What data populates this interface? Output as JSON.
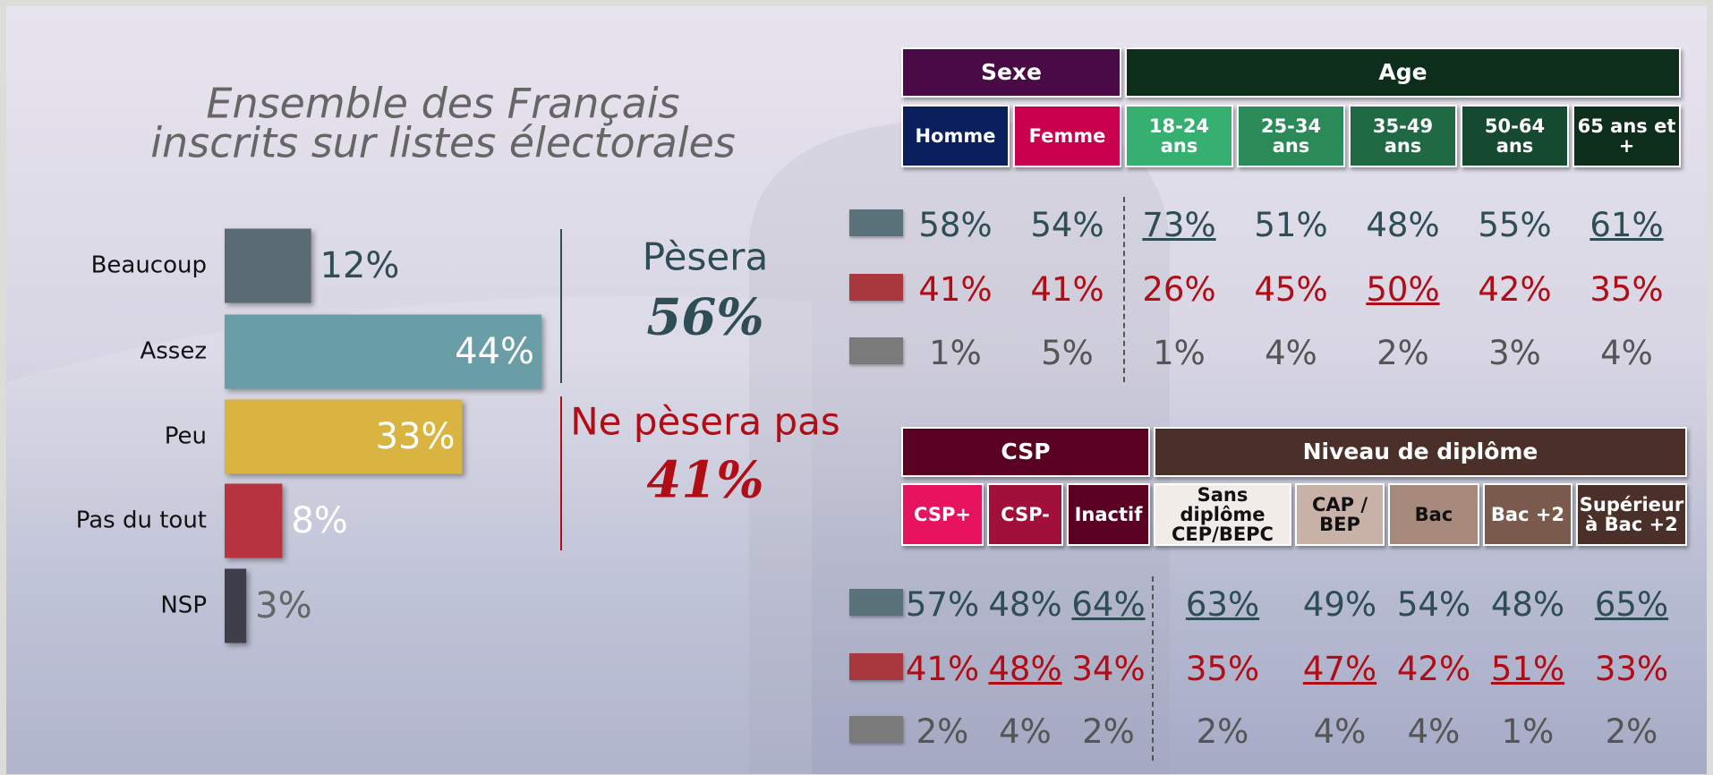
{
  "chart_data": {
    "type": "hbar",
    "title": [
      "Ensemble des Français",
      "inscrits sur listes électorales"
    ],
    "categories": [
      "Beaucoup",
      "Assez",
      "Peu",
      "Pas du tout",
      "NSP"
    ],
    "values": [
      12,
      44,
      33,
      8,
      3
    ],
    "value_labels": [
      "12%",
      "44%",
      "33%",
      "8%",
      "3%"
    ],
    "colors": [
      "#5a6b73",
      "#6a9ea6",
      "#d9b440",
      "#b5343d",
      "#3e3f4a"
    ],
    "label_colors": [
      "#2e4d55",
      "#ffffff",
      "#ffffff",
      "#ffffff",
      "#666666"
    ],
    "annotations": [
      {
        "text": "Pèsera",
        "value": 56,
        "value_label": "56%",
        "color": "#2e4d55"
      },
      {
        "text": "Ne pèsera pas",
        "value": 41,
        "value_label": "41%",
        "color": "#b00d16"
      }
    ]
  },
  "tables": [
    {
      "groups": [
        {
          "name": "Sexe",
          "color": "#4a0a45",
          "columns": [
            {
              "label": "Homme",
              "color": "#0a1f5c",
              "text_color": "#ffffff"
            },
            {
              "label": "Femme",
              "color": "#c8004e",
              "text_color": "#ffffff"
            }
          ]
        },
        {
          "name": "Age",
          "color": "#0e2e1c",
          "columns": [
            {
              "label": "18-24 ans",
              "color": "#35b070",
              "text_color": "#ffffff"
            },
            {
              "label": "25-34 ans",
              "color": "#2a8a58",
              "text_color": "#ffffff"
            },
            {
              "label": "35-49 ans",
              "color": "#1f6a45",
              "text_color": "#ffffff"
            },
            {
              "label": "50-64 ans",
              "color": "#154a30",
              "text_color": "#ffffff"
            },
            {
              "label": "65 ans et +",
              "color": "#0e2e1c",
              "text_color": "#ffffff"
            }
          ]
        }
      ],
      "rows": [
        {
          "color": "#5a737a",
          "text_color": "#2e4d55",
          "values": [
            "58%",
            "54%",
            "73%",
            "51%",
            "48%",
            "55%",
            "61%"
          ],
          "underline": [
            false,
            false,
            true,
            false,
            false,
            false,
            true
          ]
        },
        {
          "color": "#a8373e",
          "text_color": "#b00d16",
          "values": [
            "41%",
            "41%",
            "26%",
            "45%",
            "50%",
            "42%",
            "35%"
          ],
          "underline": [
            false,
            false,
            false,
            false,
            true,
            false,
            false
          ]
        },
        {
          "color": "#7a7a7a",
          "text_color": "#555555",
          "values": [
            "1%",
            "5%",
            "1%",
            "4%",
            "2%",
            "3%",
            "4%"
          ],
          "underline": [
            false,
            false,
            false,
            false,
            false,
            false,
            false
          ]
        }
      ]
    },
    {
      "groups": [
        {
          "name": "CSP",
          "color": "#5a0020",
          "columns": [
            {
              "label": "CSP+",
              "color": "#e8135f",
              "text_color": "#ffffff"
            },
            {
              "label": "CSP-",
              "color": "#a0103a",
              "text_color": "#ffffff"
            },
            {
              "label": "Inactif",
              "color": "#5a0020",
              "text_color": "#ffffff"
            }
          ]
        },
        {
          "name": "Niveau de diplôme",
          "color": "#4a3028",
          "columns": [
            {
              "label": "Sans diplôme CEP/BEPC",
              "color": "#f2ece8",
              "text_color": "#111111"
            },
            {
              "label": "CAP / BEP",
              "color": "#c8b2a8",
              "text_color": "#111111"
            },
            {
              "label": "Bac",
              "color": "#a88a7c",
              "text_color": "#111111"
            },
            {
              "label": "Bac +2",
              "color": "#7a5a4c",
              "text_color": "#ffffff"
            },
            {
              "label": "Supérieur à Bac +2",
              "color": "#4a3028",
              "text_color": "#ffffff"
            }
          ]
        }
      ],
      "rows": [
        {
          "color": "#5a737a",
          "text_color": "#2e4d55",
          "values": [
            "57%",
            "48%",
            "64%",
            "63%",
            "49%",
            "54%",
            "48%",
            "65%"
          ],
          "underline": [
            false,
            false,
            true,
            true,
            false,
            false,
            false,
            true
          ]
        },
        {
          "color": "#a8373e",
          "text_color": "#b00d16",
          "values": [
            "41%",
            "48%",
            "34%",
            "35%",
            "47%",
            "42%",
            "51%",
            "33%"
          ],
          "underline": [
            false,
            true,
            false,
            false,
            true,
            false,
            true,
            false
          ]
        },
        {
          "color": "#7a7a7a",
          "text_color": "#555555",
          "values": [
            "2%",
            "4%",
            "2%",
            "2%",
            "4%",
            "4%",
            "1%",
            "2%"
          ],
          "underline": [
            false,
            false,
            false,
            false,
            false,
            false,
            false,
            false
          ]
        }
      ]
    }
  ]
}
